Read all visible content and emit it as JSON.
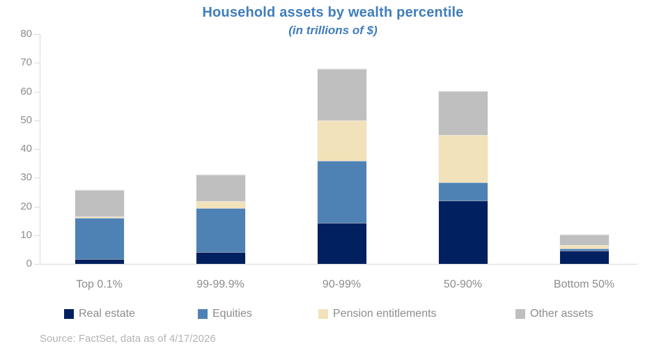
{
  "header": {
    "title": "Household assets by wealth percentile",
    "subtitle": "(in trillions of $)"
  },
  "chart_data": {
    "type": "bar",
    "stacked": true,
    "title": "Household assets by wealth percentile",
    "subtitle": "(in trillions of $)",
    "categories": [
      "Top 0.1%",
      "99-99.9%",
      "90-99%",
      "50-90%",
      "Bottom 50%"
    ],
    "series": [
      {
        "name": "Real estate",
        "color": "#00205F",
        "values": [
          1.8,
          4.1,
          14.4,
          22.1,
          4.6
        ]
      },
      {
        "name": "Equities",
        "color": "#4E82B4",
        "values": [
          14.1,
          15.2,
          21.5,
          6.3,
          0.7
        ]
      },
      {
        "name": "Pension entitlements",
        "color": "#F2E2BA",
        "values": [
          0.6,
          2.6,
          14.1,
          16.4,
          1.2
        ]
      },
      {
        "name": "Other assets",
        "color": "#BFBFBF",
        "values": [
          9.2,
          9.1,
          18.0,
          15.3,
          3.7
        ]
      }
    ],
    "totals": [
      25.7,
      31.0,
      68.0,
      60.1,
      10.2
    ],
    "xlabel": "",
    "ylabel": "",
    "ylim": [
      0,
      80
    ],
    "ytick_step": 10,
    "yticks": [
      0,
      10,
      20,
      30,
      40,
      50,
      60,
      70,
      80
    ],
    "grid": false,
    "legend_position": "bottom"
  },
  "footer": {
    "source": "Source: FactSet, data as of 4/17/2026"
  },
  "colors": {
    "title_text": "#3F7DBC",
    "axis_text": "#8C8C8C",
    "axis_line": "#D9D9D9",
    "source_text": "#B3B3B3"
  }
}
